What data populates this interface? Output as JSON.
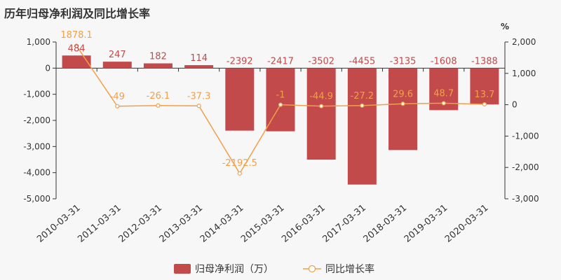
{
  "title": "历年归母净利润及同比增长率",
  "colors": {
    "bar": "#c24a4a",
    "line": "#f0a04a",
    "axis": "#333333"
  },
  "chart_data": {
    "type": "bar",
    "categories": [
      "2010-03-31",
      "2011-03-31",
      "2012-03-31",
      "2013-03-31",
      "2014-03-31",
      "2015-03-31",
      "2016-03-31",
      "2017-03-31",
      "2018-03-31",
      "2019-03-31",
      "2020-03-31"
    ],
    "series": [
      {
        "name": "归母净利润（万）",
        "type": "bar",
        "axis": "left",
        "values": [
          484,
          247,
          182,
          114,
          -2392,
          -2417,
          -3502,
          -4455,
          -3135,
          -1608,
          -1388
        ]
      },
      {
        "name": "同比增长率",
        "type": "line",
        "axis": "right",
        "values": [
          1878.1,
          -49,
          -26.1,
          -37.3,
          -2192.5,
          -1,
          -44.9,
          -27.2,
          29.6,
          48.7,
          13.7
        ]
      }
    ],
    "ylim_left": [
      -5000,
      1000
    ],
    "yticks_left": [
      "1,000",
      "0",
      "-1,000",
      "-2,000",
      "-3,000",
      "-4,000",
      "-5,000"
    ],
    "ylim_right": [
      -3000,
      2000
    ],
    "yticks_right": [
      "2,000",
      "1,000",
      "0",
      "-1,000",
      "-2,000",
      "-3,000"
    ],
    "ylabel_right": "%",
    "legend_position": "bottom"
  }
}
